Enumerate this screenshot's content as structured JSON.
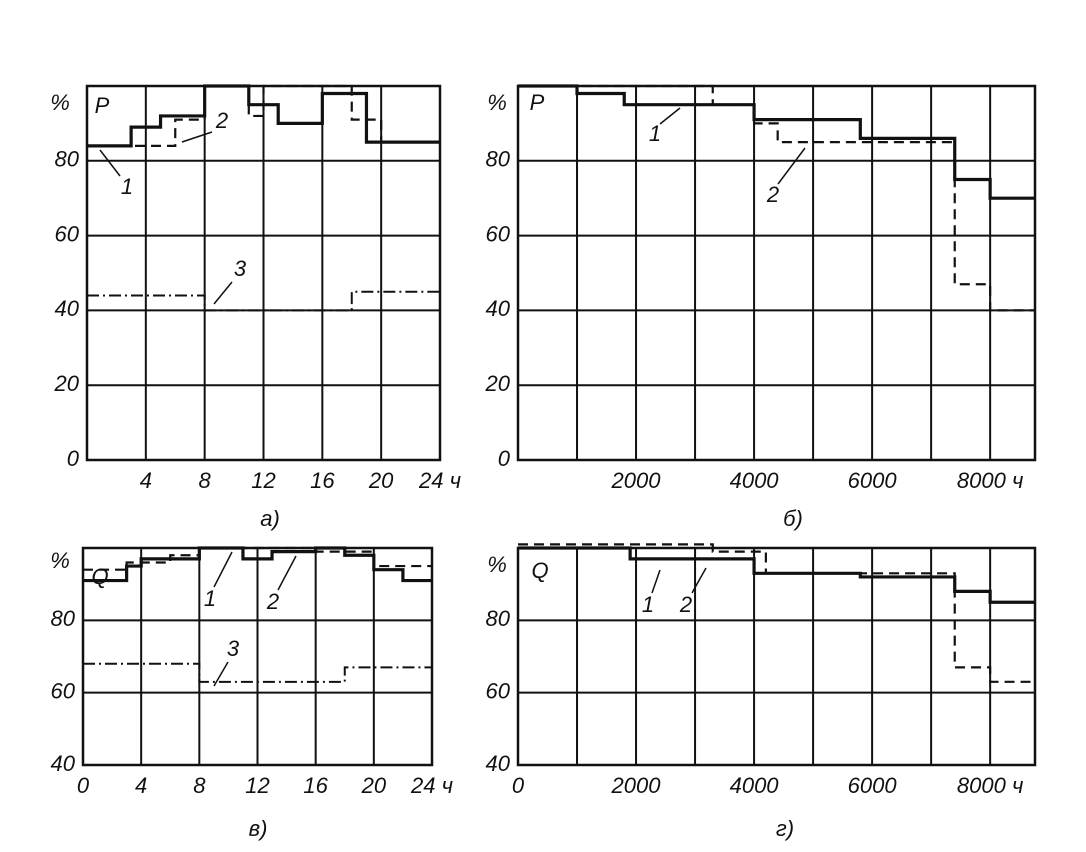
{
  "chart_data": [
    {
      "type": "step",
      "caption": "а)",
      "y_label": "%",
      "annotations": [
        "P"
      ],
      "xlim": [
        0,
        24
      ],
      "ylim": [
        0,
        100
      ],
      "xticks": [
        4,
        8,
        12,
        16,
        20,
        {
          "value": 24,
          "label": "24 ч"
        }
      ],
      "yticks": [
        0,
        20,
        40,
        60,
        80
      ],
      "grid": true,
      "series": [
        {
          "name": "1",
          "style": "solid",
          "color": "#111",
          "x": [
            0,
            3,
            5,
            8,
            11,
            13,
            16,
            19
          ],
          "values": [
            84,
            89,
            92,
            100,
            95,
            90,
            98,
            85
          ]
        },
        {
          "name": "2",
          "style": "dashed",
          "color": "#111",
          "x": [
            0,
            6,
            8,
            11,
            12,
            18,
            20
          ],
          "values": [
            84,
            91,
            100,
            92,
            100,
            91,
            85
          ]
        },
        {
          "name": "3",
          "style": "dashdot",
          "color": "#111",
          "x": [
            0,
            8,
            18
          ],
          "values": [
            44,
            40,
            45
          ]
        }
      ]
    },
    {
      "type": "step",
      "caption": "б)",
      "y_label": "%",
      "annotations": [
        "P"
      ],
      "xlim": [
        0,
        8760
      ],
      "ylim": [
        0,
        100
      ],
      "xticks": [
        2000,
        4000,
        6000,
        {
          "value": 8000,
          "label": "8000 ч"
        }
      ],
      "xminor": [
        1000,
        3000,
        5000,
        7000
      ],
      "yticks": [
        0,
        20,
        40,
        60,
        80
      ],
      "grid": true,
      "series": [
        {
          "name": "1",
          "style": "solid",
          "color": "#111",
          "x": [
            0,
            1000,
            1800,
            4000,
            5800,
            7400,
            8000
          ],
          "values": [
            100,
            98,
            95,
            91,
            86,
            75,
            70
          ]
        },
        {
          "name": "2",
          "style": "dashed",
          "color": "#111",
          "x": [
            0,
            3300,
            4000,
            4400,
            7400,
            8000
          ],
          "values": [
            100,
            95,
            90,
            85,
            47,
            40
          ]
        }
      ]
    },
    {
      "type": "step",
      "caption": "в)",
      "y_label": "%",
      "annotations": [
        "Q"
      ],
      "xlim": [
        0,
        24
      ],
      "ylim": [
        40,
        100
      ],
      "xticks": [
        0,
        4,
        8,
        12,
        16,
        20,
        {
          "value": 24,
          "label": "24 ч"
        }
      ],
      "yticks": [
        40,
        60,
        80
      ],
      "grid": true,
      "series": [
        {
          "name": "1",
          "style": "solid",
          "color": "#111",
          "x": [
            0,
            3,
            4,
            8,
            11,
            13,
            16,
            18,
            20,
            22
          ],
          "values": [
            91,
            95,
            97,
            100,
            97,
            99,
            100,
            98,
            94,
            91
          ]
        },
        {
          "name": "2",
          "style": "dashed",
          "color": "#111",
          "x": [
            0,
            3,
            6,
            8,
            16,
            20
          ],
          "values": [
            94,
            96,
            98,
            100,
            99,
            95
          ]
        },
        {
          "name": "3",
          "style": "dashdot",
          "color": "#111",
          "x": [
            0,
            8,
            18
          ],
          "values": [
            68,
            63,
            67
          ]
        }
      ]
    },
    {
      "type": "step",
      "caption": "г)",
      "y_label": "%",
      "annotations": [
        "Q"
      ],
      "xlim": [
        0,
        8760
      ],
      "ylim": [
        40,
        100
      ],
      "xticks": [
        0,
        2000,
        4000,
        6000,
        {
          "value": 8000,
          "label": "8000 ч"
        }
      ],
      "xminor": [
        1000,
        3000,
        5000,
        7000
      ],
      "yticks": [
        40,
        60,
        80
      ],
      "grid": true,
      "series": [
        {
          "name": "1",
          "style": "solid",
          "color": "#111",
          "x": [
            0,
            1900,
            4000,
            5800,
            7400,
            8000
          ],
          "values": [
            100,
            97,
            93,
            92,
            88,
            85
          ]
        },
        {
          "name": "2",
          "style": "dashed",
          "color": "#111",
          "x": [
            0,
            3300,
            4200,
            7400,
            8000
          ],
          "values": [
            101,
            99,
            93,
            67,
            63
          ]
        }
      ]
    }
  ]
}
